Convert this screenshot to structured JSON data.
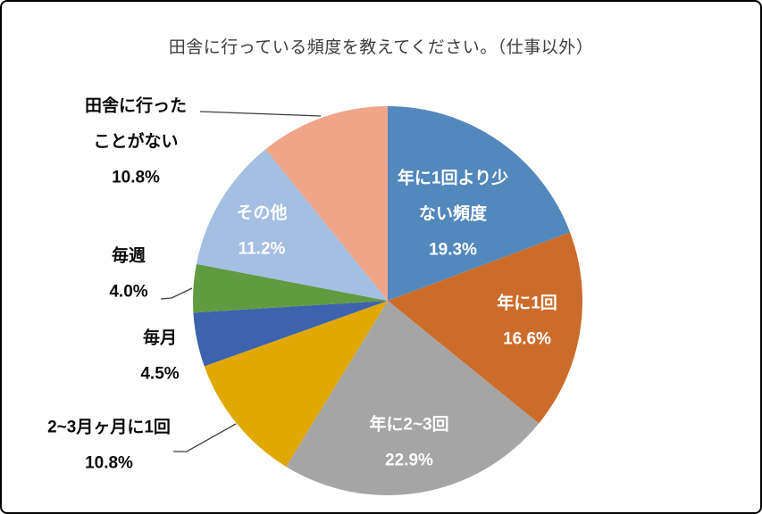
{
  "chart_data": {
    "type": "pie",
    "title": "田舎に行っている頻度を教えてください。（仕事以外）",
    "legend_position": "none",
    "start_angle_deg": 0,
    "direction": "clockwise",
    "slices": [
      {
        "label": "年に1回より少ない頻度",
        "label_lines": [
          "年に1回より少",
          "ない頻度"
        ],
        "percent_label": "19.3%",
        "value": 19.3,
        "color": "#5388BD",
        "label_placement": "inside"
      },
      {
        "label": "年に1回",
        "label_lines": [
          "年に1回"
        ],
        "percent_label": "16.6%",
        "value": 16.6,
        "color": "#CC6C2B",
        "label_placement": "inside"
      },
      {
        "label": "年に2~3回",
        "label_lines": [
          "年に2~3回"
        ],
        "percent_label": "22.9%",
        "value": 22.9,
        "color": "#A5A5A5",
        "label_placement": "inside"
      },
      {
        "label": "2~3月ヶ月に1回",
        "label_lines": [
          "2~3月ヶ月に1回"
        ],
        "percent_label": "10.8%",
        "value": 10.8,
        "color": "#E0A800",
        "label_placement": "outside"
      },
      {
        "label": "毎月",
        "label_lines": [
          "毎月"
        ],
        "percent_label": "4.5%",
        "value": 4.5,
        "color": "#3D63AE",
        "label_placement": "outside"
      },
      {
        "label": "毎週",
        "label_lines": [
          "毎週"
        ],
        "percent_label": "4.0%",
        "value": 4.0,
        "color": "#609A41",
        "label_placement": "outside"
      },
      {
        "label": "その他",
        "label_lines": [
          "その他"
        ],
        "percent_label": "11.2%",
        "value": 11.2,
        "color": "#A3BFE2",
        "label_placement": "inside"
      },
      {
        "label": "田舎に行ったことがない",
        "label_lines": [
          "田舎に行った",
          "ことがない"
        ],
        "percent_label": "10.8%",
        "value": 10.8,
        "color": "#F0A488",
        "label_placement": "outside"
      }
    ]
  }
}
